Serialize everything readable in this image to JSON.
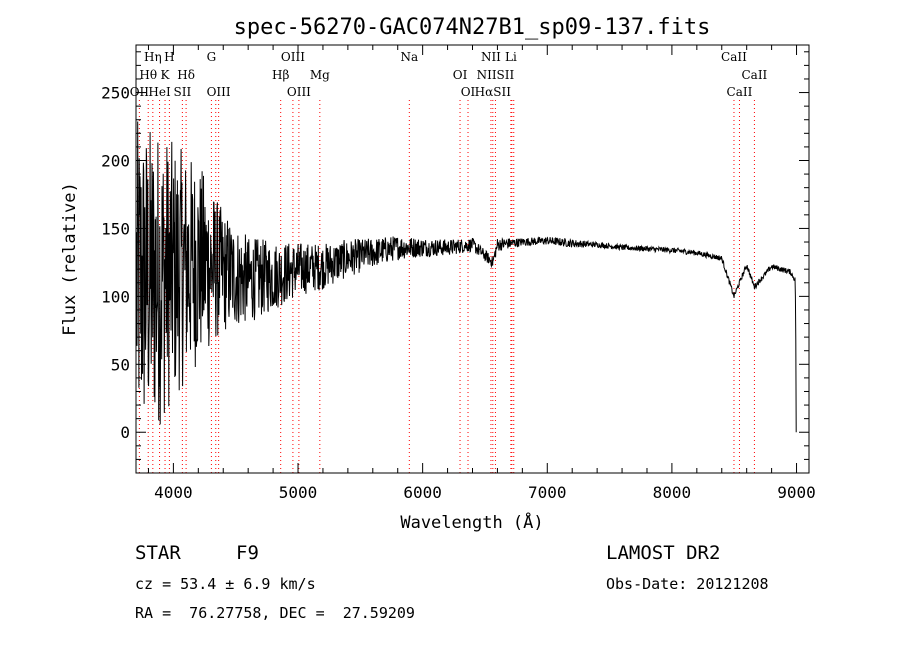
{
  "chart_data": {
    "type": "line",
    "title": "spec-56270-GAC074N27B1_sp09-137.fits",
    "xlabel": "Wavelength (Å)",
    "ylabel": "Flux (relative)",
    "xlim": [
      3700,
      9100
    ],
    "ylim": [
      -30,
      285
    ],
    "xticks": [
      4000,
      5000,
      6000,
      7000,
      8000,
      9000
    ],
    "yticks": [
      0,
      50,
      100,
      150,
      200,
      250
    ],
    "grid": false,
    "line_color": "#000000",
    "marker_line_color": "#ff0000",
    "series": [
      {
        "x": [
          3700,
          3900,
          4000,
          4200,
          4400,
          4600,
          4800,
          5000,
          5200,
          5400,
          5600,
          5800,
          6000,
          6200,
          6400,
          6563,
          6600,
          6800,
          7000,
          7200,
          7400,
          7600,
          7800,
          8000,
          8200,
          8400,
          8498,
          8542,
          8600,
          8662,
          8800,
          8950,
          8990,
          9000
        ],
        "y": [
          110,
          115,
          118,
          125,
          118,
          112,
          115,
          120,
          122,
          128,
          132,
          136,
          136,
          136,
          138,
          125,
          138,
          140,
          141,
          139,
          138,
          136,
          135,
          134,
          132,
          128,
          100,
          110,
          123,
          107,
          122,
          118,
          112,
          0
        ],
        "noise": [
          120,
          110,
          95,
          75,
          45,
          32,
          26,
          20,
          17,
          14,
          11,
          9,
          7,
          6,
          5,
          4,
          5,
          3,
          3,
          3,
          2,
          2,
          2,
          2,
          2,
          2,
          2,
          2,
          2,
          2,
          2,
          2,
          2,
          0
        ]
      }
    ],
    "lines_top": [
      {
        "label": "Hη",
        "x": 3835
      },
      {
        "label": "H",
        "x": 3968
      },
      {
        "label": "G",
        "x": 4305
      },
      {
        "label": "OIII",
        "x": 4959
      },
      {
        "label": "Na",
        "x": 5893
      },
      {
        "label": "NII",
        "x": 6548
      },
      {
        "label": "Li",
        "x": 6708
      },
      {
        "label": "CaII",
        "x": 8498
      }
    ],
    "lines_mid": [
      {
        "label": "Hθ",
        "x": 3798
      },
      {
        "label": "K",
        "x": 3933
      },
      {
        "label": "Hδ",
        "x": 4102
      },
      {
        "label": "Hβ",
        "x": 4861
      },
      {
        "label": "Mg",
        "x": 5175
      },
      {
        "label": "OI",
        "x": 6300
      },
      {
        "label": "NIISII",
        "x": 6584
      },
      {
        "label": "CaII",
        "x": 8662
      }
    ],
    "lines_bot": [
      {
        "label": "OII",
        "x": 3727
      },
      {
        "label": "HeI",
        "x": 3889
      },
      {
        "label": "SII",
        "x": 4072
      },
      {
        "label": "OIII",
        "x": 4363
      },
      {
        "label": "OIII",
        "x": 5007
      },
      {
        "label": "OI",
        "x": 6364
      },
      {
        "label": "HαSII",
        "x": 6563
      },
      {
        "label": "CaII",
        "x": 8542
      }
    ],
    "extra_marker_lines": [
      4340,
      6716,
      6731
    ]
  },
  "info": {
    "object_class": "STAR",
    "subclass": "F9",
    "survey": "LAMOST DR2",
    "redshift": "cz = 53.4 ± 6.9 km/s",
    "obs_date": "Obs-Date: 20121208",
    "coords": "RA =  76.27758, DEC =  27.59209"
  }
}
